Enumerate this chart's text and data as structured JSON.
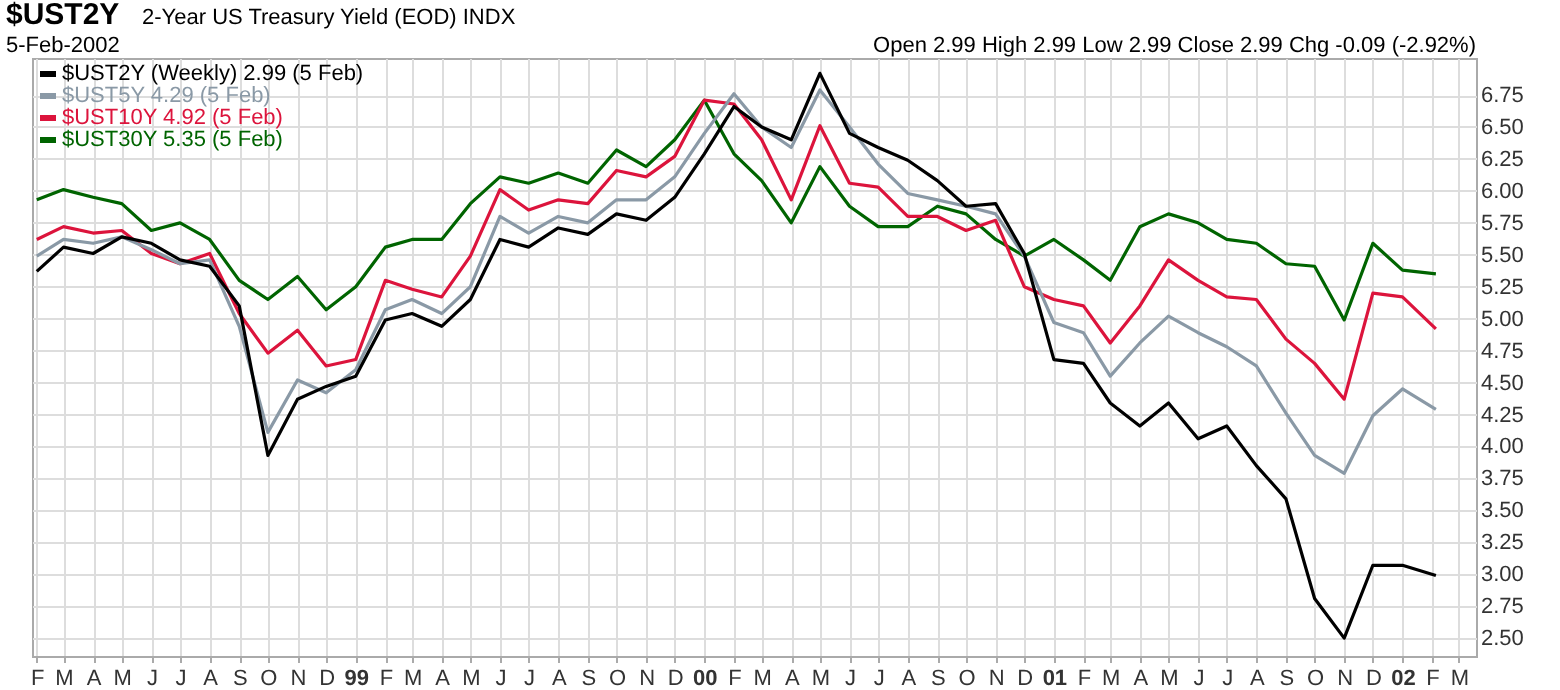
{
  "chart_data": {
    "type": "line",
    "title": "$UST2Y",
    "subtitle": "2-Year US Treasury Yield (EOD)  INDX",
    "annotations": [
      "5-Feb-2002",
      "Open 2.99  High 2.99  Low 2.99  Close 2.99  Chg -0.09 (-2.92%)"
    ],
    "x": [
      "1998-02-01",
      "1998-03-01",
      "1998-04-01",
      "1998-05-01",
      "1998-06-01",
      "1998-07-01",
      "1998-08-01",
      "1998-09-01",
      "1998-10-01",
      "1998-11-01",
      "1998-12-01",
      "1999-01-01",
      "1999-02-01",
      "1999-03-01",
      "1999-04-01",
      "1999-05-01",
      "1999-06-01",
      "1999-07-01",
      "1999-08-01",
      "1999-09-01",
      "1999-10-01",
      "1999-11-01",
      "1999-12-01",
      "2000-01-01",
      "2000-02-01",
      "2000-03-01",
      "2000-04-01",
      "2000-05-01",
      "2000-06-01",
      "2000-07-01",
      "2000-08-01",
      "2000-09-01",
      "2000-10-01",
      "2000-11-01",
      "2000-12-01",
      "2001-01-01",
      "2001-02-01",
      "2001-03-01",
      "2001-04-01",
      "2001-05-01",
      "2001-06-01",
      "2001-07-01",
      "2001-08-01",
      "2001-09-01",
      "2001-10-01",
      "2001-11-01",
      "2001-12-01",
      "2002-01-01",
      "2002-02-05"
    ],
    "series": [
      {
        "name": "$UST2Y (Weekly) 2.99 (5 Feb)",
        "color": "#000000",
        "values": [
          5.37,
          5.56,
          5.51,
          5.64,
          5.59,
          5.46,
          5.41,
          5.1,
          3.93,
          4.37,
          4.47,
          4.55,
          4.99,
          5.04,
          4.94,
          5.15,
          5.62,
          5.56,
          5.71,
          5.66,
          5.82,
          5.77,
          5.95,
          6.29,
          6.66,
          6.5,
          6.4,
          6.92,
          6.45,
          6.34,
          6.24,
          6.08,
          5.88,
          5.9,
          5.51,
          4.68,
          4.65,
          4.34,
          4.16,
          4.34,
          4.06,
          4.16,
          3.85,
          3.59,
          2.81,
          2.5,
          3.07,
          3.07,
          2.99
        ]
      },
      {
        "name": "$UST5Y 4.29 (5 Feb)",
        "color": "#8a99a6",
        "values": [
          5.49,
          5.62,
          5.59,
          5.64,
          5.54,
          5.43,
          5.46,
          4.94,
          4.11,
          4.52,
          4.42,
          4.6,
          5.07,
          5.15,
          5.04,
          5.25,
          5.8,
          5.67,
          5.8,
          5.75,
          5.93,
          5.93,
          6.11,
          6.45,
          6.76,
          6.5,
          6.34,
          6.79,
          6.5,
          6.21,
          5.98,
          5.93,
          5.88,
          5.82,
          5.49,
          4.97,
          4.89,
          4.55,
          4.81,
          5.02,
          4.89,
          4.78,
          4.63,
          4.26,
          3.93,
          3.79,
          4.24,
          4.45,
          4.29
        ]
      },
      {
        "name": "$UST10Y 4.92 (5 Feb)",
        "color": "#dc143c",
        "values": [
          5.62,
          5.72,
          5.67,
          5.69,
          5.51,
          5.43,
          5.51,
          5.04,
          4.73,
          4.91,
          4.63,
          4.68,
          5.3,
          5.23,
          5.17,
          5.49,
          6.01,
          5.85,
          5.93,
          5.9,
          6.16,
          6.11,
          6.27,
          6.71,
          6.68,
          6.4,
          5.93,
          6.51,
          6.06,
          6.03,
          5.8,
          5.8,
          5.69,
          5.77,
          5.25,
          5.15,
          5.1,
          4.81,
          5.1,
          5.46,
          5.3,
          5.17,
          5.15,
          4.84,
          4.65,
          4.37,
          5.2,
          5.17,
          4.92
        ]
      },
      {
        "name": "$UST30Y 5.35 (5 Feb)",
        "color": "#006400",
        "values": [
          5.93,
          6.01,
          5.95,
          5.9,
          5.69,
          5.75,
          5.62,
          5.3,
          5.15,
          5.33,
          5.07,
          5.25,
          5.56,
          5.62,
          5.62,
          5.9,
          6.11,
          6.06,
          6.14,
          6.06,
          6.32,
          6.19,
          6.4,
          6.71,
          6.29,
          6.08,
          5.75,
          6.19,
          5.88,
          5.72,
          5.72,
          5.88,
          5.82,
          5.62,
          5.49,
          5.62,
          5.46,
          5.3,
          5.72,
          5.82,
          5.75,
          5.62,
          5.59,
          5.43,
          5.41,
          4.99,
          5.59,
          5.38,
          5.35
        ]
      }
    ],
    "xlim": [
      "1998-01-27",
      "2002-03-19"
    ],
    "xticks": [
      {
        "value": "1998-02-01",
        "label": "F"
      },
      {
        "value": "1998-03-01",
        "label": "M"
      },
      {
        "value": "1998-04-01",
        "label": "A"
      },
      {
        "value": "1998-05-01",
        "label": "M"
      },
      {
        "value": "1998-06-01",
        "label": "J"
      },
      {
        "value": "1998-07-01",
        "label": "J"
      },
      {
        "value": "1998-08-01",
        "label": "A"
      },
      {
        "value": "1998-09-01",
        "label": "S"
      },
      {
        "value": "1998-10-01",
        "label": "O"
      },
      {
        "value": "1998-11-01",
        "label": "N"
      },
      {
        "value": "1998-12-01",
        "label": "D"
      },
      {
        "value": "1999-01-01",
        "label": "99"
      },
      {
        "value": "1999-02-01",
        "label": "F"
      },
      {
        "value": "1999-03-01",
        "label": "M"
      },
      {
        "value": "1999-04-01",
        "label": "A"
      },
      {
        "value": "1999-05-01",
        "label": "M"
      },
      {
        "value": "1999-06-01",
        "label": "J"
      },
      {
        "value": "1999-07-01",
        "label": "J"
      },
      {
        "value": "1999-08-01",
        "label": "A"
      },
      {
        "value": "1999-09-01",
        "label": "S"
      },
      {
        "value": "1999-10-01",
        "label": "O"
      },
      {
        "value": "1999-11-01",
        "label": "N"
      },
      {
        "value": "1999-12-01",
        "label": "D"
      },
      {
        "value": "2000-01-01",
        "label": "00"
      },
      {
        "value": "2000-02-01",
        "label": "F"
      },
      {
        "value": "2000-03-01",
        "label": "M"
      },
      {
        "value": "2000-04-01",
        "label": "A"
      },
      {
        "value": "2000-05-01",
        "label": "M"
      },
      {
        "value": "2000-06-01",
        "label": "J"
      },
      {
        "value": "2000-07-01",
        "label": "J"
      },
      {
        "value": "2000-08-01",
        "label": "A"
      },
      {
        "value": "2000-09-01",
        "label": "S"
      },
      {
        "value": "2000-10-01",
        "label": "O"
      },
      {
        "value": "2000-11-01",
        "label": "N"
      },
      {
        "value": "2000-12-01",
        "label": "D"
      },
      {
        "value": "2001-01-01",
        "label": "01"
      },
      {
        "value": "2001-02-01",
        "label": "F"
      },
      {
        "value": "2001-03-01",
        "label": "M"
      },
      {
        "value": "2001-04-01",
        "label": "A"
      },
      {
        "value": "2001-05-01",
        "label": "M"
      },
      {
        "value": "2001-06-01",
        "label": "J"
      },
      {
        "value": "2001-07-01",
        "label": "J"
      },
      {
        "value": "2001-08-01",
        "label": "A"
      },
      {
        "value": "2001-09-01",
        "label": "S"
      },
      {
        "value": "2001-10-01",
        "label": "O"
      },
      {
        "value": "2001-11-01",
        "label": "N"
      },
      {
        "value": "2001-12-01",
        "label": "D"
      },
      {
        "value": "2002-01-01",
        "label": "02"
      },
      {
        "value": "2002-02-01",
        "label": "F"
      },
      {
        "value": "2002-03-01",
        "label": "M"
      }
    ],
    "ylim": [
      2.36,
      7.04
    ],
    "yticks": [
      {
        "value": 2.5,
        "label": "2.50"
      },
      {
        "value": 2.75,
        "label": "2.75"
      },
      {
        "value": 3,
        "label": "3.00"
      },
      {
        "value": 3.25,
        "label": "3.25"
      },
      {
        "value": 3.5,
        "label": "3.50"
      },
      {
        "value": 3.75,
        "label": "3.75"
      },
      {
        "value": 4,
        "label": "4.00"
      },
      {
        "value": 4.25,
        "label": "4.25"
      },
      {
        "value": 4.5,
        "label": "4.50"
      },
      {
        "value": 4.75,
        "label": "4.75"
      },
      {
        "value": 5,
        "label": "5.00"
      },
      {
        "value": 5.25,
        "label": "5.25"
      },
      {
        "value": 5.5,
        "label": "5.50"
      },
      {
        "value": 5.75,
        "label": "5.75"
      },
      {
        "value": 6,
        "label": "6.00"
      },
      {
        "value": 6.25,
        "label": "6.25"
      },
      {
        "value": 6.5,
        "label": "6.50"
      },
      {
        "value": 6.75,
        "label": "6.75"
      }
    ],
    "grid": true,
    "legend": "top left",
    "marker": "none",
    "line_style": "solid"
  }
}
